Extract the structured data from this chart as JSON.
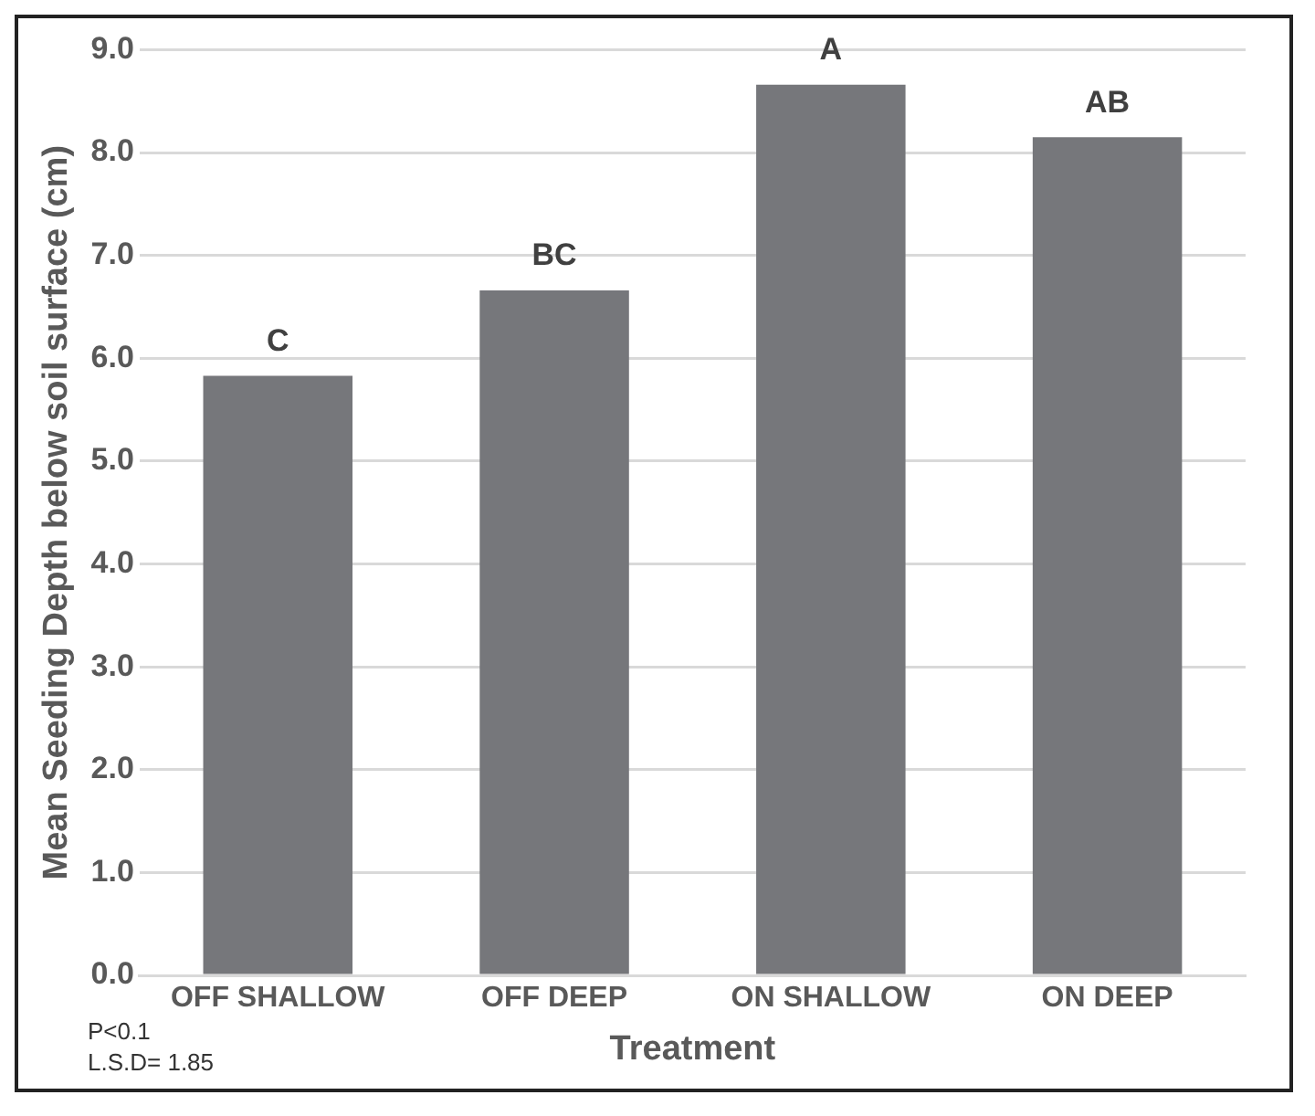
{
  "chart_data": {
    "type": "bar",
    "xlabel": "Treatment",
    "ylabel": "Mean Seeding Depth below soil surface (cm)",
    "categories": [
      "OFF SHALLOW",
      "OFF DEEP",
      "ON SHALLOW",
      "ON DEEP"
    ],
    "values": [
      5.83,
      6.66,
      8.66,
      8.15
    ],
    "color": "#76777b",
    "ylim": [
      0,
      9
    ],
    "yticks": [
      {
        "value": 0,
        "label": "0.0"
      },
      {
        "value": 1,
        "label": "1.0"
      },
      {
        "value": 2,
        "label": "2.0"
      },
      {
        "value": 3,
        "label": "3.0"
      },
      {
        "value": 4,
        "label": "4.0"
      },
      {
        "value": 5,
        "label": "5.0"
      },
      {
        "value": 6,
        "label": "6.0"
      },
      {
        "value": 7,
        "label": "7.0"
      },
      {
        "value": 8,
        "label": "8.0"
      },
      {
        "value": 9,
        "label": "9.0"
      }
    ],
    "grid": "y",
    "legend": false,
    "annotations": [
      {
        "text": "C",
        "x": "OFF SHALLOW",
        "y": 5.83
      },
      {
        "text": "BC",
        "x": "OFF DEEP",
        "y": 6.66
      },
      {
        "text": "A",
        "x": "ON SHALLOW",
        "y": 8.66
      },
      {
        "text": "AB",
        "x": "ON DEEP",
        "y": 8.15
      },
      "P<0.1",
      "L.S.D= 1.85"
    ]
  }
}
